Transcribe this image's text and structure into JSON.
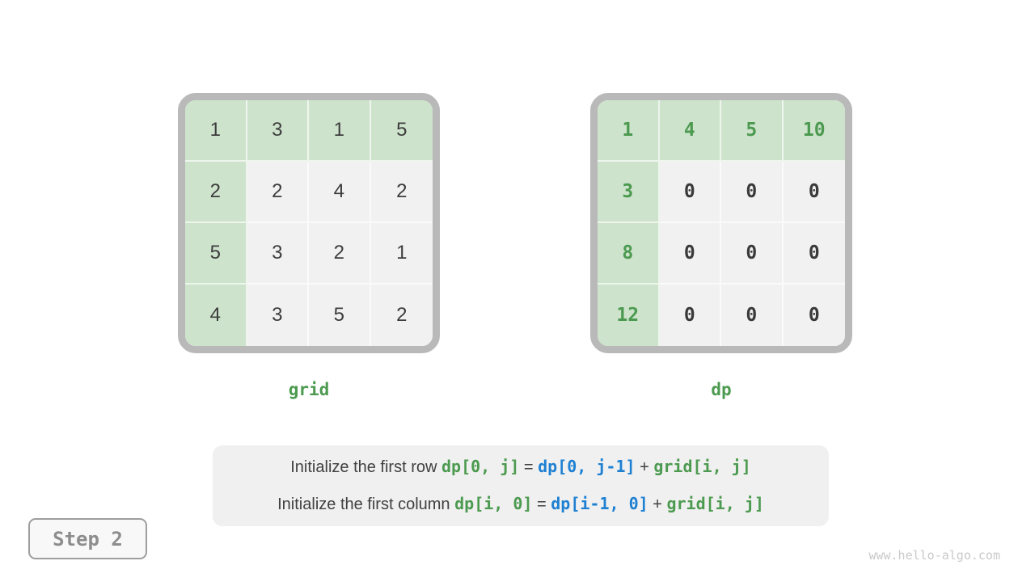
{
  "colors": {
    "accent_green": "#4c9a50",
    "accent_blue": "#1e80d2",
    "cell_highlight_green": "#cee3cc",
    "cell_gray": "#f1f1f1",
    "frame_gray": "#b9b9b9"
  },
  "grids": [
    {
      "label": "grid",
      "style": "plain",
      "cells": [
        [
          {
            "value": "1",
            "highlight": true
          },
          {
            "value": "3",
            "highlight": true
          },
          {
            "value": "1",
            "highlight": true
          },
          {
            "value": "5",
            "highlight": true
          }
        ],
        [
          {
            "value": "2",
            "highlight": true
          },
          {
            "value": "2",
            "highlight": false
          },
          {
            "value": "4",
            "highlight": false
          },
          {
            "value": "2",
            "highlight": false
          }
        ],
        [
          {
            "value": "5",
            "highlight": true
          },
          {
            "value": "3",
            "highlight": false
          },
          {
            "value": "2",
            "highlight": false
          },
          {
            "value": "1",
            "highlight": false
          }
        ],
        [
          {
            "value": "4",
            "highlight": true
          },
          {
            "value": "3",
            "highlight": false
          },
          {
            "value": "5",
            "highlight": false
          },
          {
            "value": "2",
            "highlight": false
          }
        ]
      ]
    },
    {
      "label": "dp",
      "style": "mono",
      "cells": [
        [
          {
            "value": "1",
            "highlight": true
          },
          {
            "value": "4",
            "highlight": true
          },
          {
            "value": "5",
            "highlight": true
          },
          {
            "value": "10",
            "highlight": true
          }
        ],
        [
          {
            "value": "3",
            "highlight": true
          },
          {
            "value": "0",
            "highlight": false
          },
          {
            "value": "0",
            "highlight": false
          },
          {
            "value": "0",
            "highlight": false
          }
        ],
        [
          {
            "value": "8",
            "highlight": true
          },
          {
            "value": "0",
            "highlight": false
          },
          {
            "value": "0",
            "highlight": false
          },
          {
            "value": "0",
            "highlight": false
          }
        ],
        [
          {
            "value": "12",
            "highlight": true
          },
          {
            "value": "0",
            "highlight": false
          },
          {
            "value": "0",
            "highlight": false
          },
          {
            "value": "0",
            "highlight": false
          }
        ]
      ]
    }
  ],
  "caption": {
    "lines": [
      [
        {
          "text": "Initialize the first row ",
          "style": "plain"
        },
        {
          "text": "dp[0, j]",
          "style": "green"
        },
        {
          "text": " = ",
          "style": "plain"
        },
        {
          "text": "dp[0, j-1]",
          "style": "blue"
        },
        {
          "text": " + ",
          "style": "plain"
        },
        {
          "text": "grid[i, j]",
          "style": "green"
        }
      ],
      [
        {
          "text": "Initialize the first column ",
          "style": "plain"
        },
        {
          "text": "dp[i, 0]",
          "style": "green"
        },
        {
          "text": " = ",
          "style": "plain"
        },
        {
          "text": "dp[i-1, 0]",
          "style": "blue"
        },
        {
          "text": " + ",
          "style": "plain"
        },
        {
          "text": "grid[i, j]",
          "style": "green"
        }
      ]
    ]
  },
  "step_badge": {
    "label": "Step 2"
  },
  "watermark": {
    "text": "www.hello-algo.com"
  }
}
